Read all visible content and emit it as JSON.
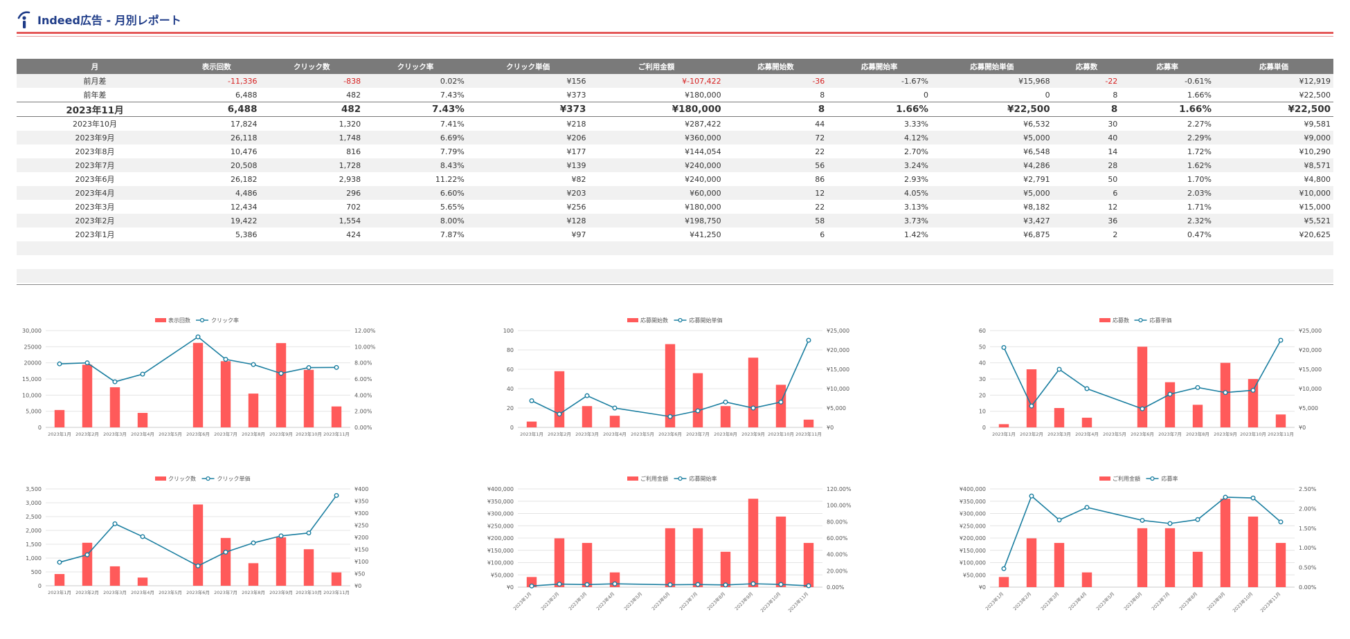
{
  "header": {
    "title": "Indeed広告 - 月別レポート"
  },
  "colors": {
    "bar": "#ff5a5a",
    "line": "#1a7ea0",
    "header_bg": "#7a7a7a",
    "negative": "#d62020",
    "title": "#1f3c88",
    "rule": "#e45858"
  },
  "table": {
    "columns": [
      "月",
      "表示回数",
      "クリック数",
      "クリック率",
      "クリック単価",
      "ご利用金額",
      "応募開始数",
      "応募開始率",
      "応募開始単価",
      "応募数",
      "応募率",
      "応募単価"
    ],
    "rows": [
      {
        "cells": [
          "前月差",
          "-11,336",
          "-838",
          "0.02%",
          "¥156",
          "¥-107,422",
          "-36",
          "-1.67%",
          "¥15,968",
          "-22",
          "-0.61%",
          "¥12,919"
        ],
        "neg": [
          1,
          2,
          5,
          6,
          9
        ],
        "style": "shade"
      },
      {
        "cells": [
          "前年差",
          "6,488",
          "482",
          "7.43%",
          "¥373",
          "¥180,000",
          "8",
          "0",
          "0",
          "8",
          "1.66%",
          "¥22,500"
        ],
        "neg": [],
        "style": ""
      },
      {
        "cells": [
          "2023年11月",
          "6,488",
          "482",
          "7.43%",
          "¥373",
          "¥180,000",
          "8",
          "1.66%",
          "¥22,500",
          "8",
          "1.66%",
          "¥22,500"
        ],
        "neg": [],
        "style": "bold"
      },
      {
        "cells": [
          "2023年10月",
          "17,824",
          "1,320",
          "7.41%",
          "¥218",
          "¥287,422",
          "44",
          "3.33%",
          "¥6,532",
          "30",
          "2.27%",
          "¥9,581"
        ],
        "neg": [],
        "style": ""
      },
      {
        "cells": [
          "2023年9月",
          "26,118",
          "1,748",
          "6.69%",
          "¥206",
          "¥360,000",
          "72",
          "4.12%",
          "¥5,000",
          "40",
          "2.29%",
          "¥9,000"
        ],
        "neg": [],
        "style": "shade"
      },
      {
        "cells": [
          "2023年8月",
          "10,476",
          "816",
          "7.79%",
          "¥177",
          "¥144,054",
          "22",
          "2.70%",
          "¥6,548",
          "14",
          "1.72%",
          "¥10,290"
        ],
        "neg": [],
        "style": ""
      },
      {
        "cells": [
          "2023年7月",
          "20,508",
          "1,728",
          "8.43%",
          "¥139",
          "¥240,000",
          "56",
          "3.24%",
          "¥4,286",
          "28",
          "1.62%",
          "¥8,571"
        ],
        "neg": [],
        "style": "shade"
      },
      {
        "cells": [
          "2023年6月",
          "26,182",
          "2,938",
          "11.22%",
          "¥82",
          "¥240,000",
          "86",
          "2.93%",
          "¥2,791",
          "50",
          "1.70%",
          "¥4,800"
        ],
        "neg": [],
        "style": ""
      },
      {
        "cells": [
          "2023年4月",
          "4,486",
          "296",
          "6.60%",
          "¥203",
          "¥60,000",
          "12",
          "4.05%",
          "¥5,000",
          "6",
          "2.03%",
          "¥10,000"
        ],
        "neg": [],
        "style": "shade"
      },
      {
        "cells": [
          "2023年3月",
          "12,434",
          "702",
          "5.65%",
          "¥256",
          "¥180,000",
          "22",
          "3.13%",
          "¥8,182",
          "12",
          "1.71%",
          "¥15,000"
        ],
        "neg": [],
        "style": ""
      },
      {
        "cells": [
          "2023年2月",
          "19,422",
          "1,554",
          "8.00%",
          "¥128",
          "¥198,750",
          "58",
          "3.73%",
          "¥3,427",
          "36",
          "2.32%",
          "¥5,521"
        ],
        "neg": [],
        "style": "shade"
      },
      {
        "cells": [
          "2023年1月",
          "5,386",
          "424",
          "7.87%",
          "¥97",
          "¥41,250",
          "6",
          "1.42%",
          "¥6,875",
          "2",
          "0.47%",
          "¥20,625"
        ],
        "neg": [],
        "style": ""
      },
      {
        "cells": [
          "",
          "",
          "",
          "",
          "",
          "",
          "",
          "",
          "",
          "",
          "",
          ""
        ],
        "neg": [],
        "style": "shade"
      },
      {
        "cells": [
          "",
          "",
          "",
          "",
          "",
          "",
          "",
          "",
          "",
          "",
          "",
          ""
        ],
        "neg": [],
        "style": ""
      },
      {
        "cells": [
          "",
          "",
          "",
          "",
          "",
          "",
          "",
          "",
          "",
          "",
          "",
          ""
        ],
        "neg": [],
        "style": "shade"
      }
    ]
  },
  "chart_data": [
    {
      "type": "bar",
      "categories": [
        "2023年1月",
        "2023年2月",
        "2023年3月",
        "2023年4月",
        "2023年5月",
        "2023年6月",
        "2023年7月",
        "2023年8月",
        "2023年9月",
        "2023年10月",
        "2023年11月"
      ],
      "series": [
        {
          "name": "表示回数",
          "type": "bar",
          "axis": "left",
          "values": [
            5386,
            19422,
            12434,
            4486,
            null,
            26182,
            20508,
            10476,
            26118,
            17824,
            6488
          ]
        },
        {
          "name": "クリック率",
          "type": "line",
          "axis": "right",
          "values": [
            7.87,
            8.0,
            5.65,
            6.6,
            null,
            11.22,
            8.43,
            7.79,
            6.69,
            7.41,
            7.43
          ]
        }
      ],
      "left_ticks": [
        "0",
        "5,000",
        "10,000",
        "15,000",
        "20000",
        "25000",
        "30,000"
      ],
      "ylim": [
        0,
        30000
      ],
      "right_ticks": [
        "0.00%",
        "2.00%",
        "4.00%",
        "6.00%",
        "8.00%",
        "10.00%",
        "12.00%"
      ],
      "y2lim": [
        0,
        12
      ],
      "legend": "top",
      "rotate": false
    },
    {
      "type": "bar",
      "categories": [
        "2023年1月",
        "2023年2月",
        "2023年3月",
        "2023年4月",
        "2023年5月",
        "2023年6月",
        "2023年7月",
        "2023年8月",
        "2023年9月",
        "2023年10月",
        "2023年11月"
      ],
      "series": [
        {
          "name": "応募開始数",
          "type": "bar",
          "axis": "left",
          "values": [
            6,
            58,
            22,
            12,
            null,
            86,
            56,
            22,
            72,
            44,
            8
          ]
        },
        {
          "name": "応募開始単価",
          "type": "line",
          "axis": "right",
          "values": [
            6875,
            3427,
            8182,
            5000,
            null,
            2791,
            4286,
            6548,
            5000,
            6532,
            22500
          ]
        }
      ],
      "left_ticks": [
        "0",
        "20",
        "40",
        "60",
        "80",
        "100"
      ],
      "ylim": [
        0,
        100
      ],
      "right_ticks": [
        "¥0",
        "¥5,000",
        "¥10,000",
        "¥15,000",
        "¥20,000",
        "¥25,000"
      ],
      "y2lim": [
        0,
        25000
      ],
      "legend": "top",
      "rotate": false
    },
    {
      "type": "bar",
      "categories": [
        "2023年1月",
        "2023年2月",
        "2023年3月",
        "2023年4月",
        "2023年5月",
        "2023年6月",
        "2023年7月",
        "2023年8月",
        "2023年9月",
        "2023年10月",
        "2023年11月"
      ],
      "series": [
        {
          "name": "応募数",
          "type": "bar",
          "axis": "left",
          "values": [
            2,
            36,
            12,
            6,
            null,
            50,
            28,
            14,
            40,
            30,
            8
          ]
        },
        {
          "name": "応募単価",
          "type": "line",
          "axis": "right",
          "values": [
            20625,
            5521,
            15000,
            10000,
            null,
            4800,
            8571,
            10290,
            9000,
            9581,
            22500
          ]
        }
      ],
      "left_ticks": [
        "0",
        "10",
        "20",
        "30",
        "40",
        "50",
        "60"
      ],
      "ylim": [
        0,
        60
      ],
      "right_ticks": [
        "¥0",
        "¥5,000",
        "¥10,000",
        "¥15,000",
        "¥20,000",
        "¥25,000"
      ],
      "y2lim": [
        0,
        25000
      ],
      "legend": "top",
      "rotate": false
    },
    {
      "type": "bar",
      "categories": [
        "2023年1月",
        "2023年2月",
        "2023年3月",
        "2023年4月",
        "2023年5月",
        "2023年6月",
        "2023年7月",
        "2023年8月",
        "2023年9月",
        "2023年10月",
        "2023年11月"
      ],
      "series": [
        {
          "name": "クリック数",
          "type": "bar",
          "axis": "left",
          "values": [
            424,
            1554,
            702,
            296,
            null,
            2938,
            1728,
            816,
            1748,
            1320,
            482
          ]
        },
        {
          "name": "クリック単価",
          "type": "line",
          "axis": "right",
          "values": [
            97,
            128,
            256,
            203,
            null,
            82,
            139,
            177,
            206,
            218,
            373
          ]
        }
      ],
      "left_ticks": [
        "0",
        "500",
        "1,000",
        "1,500",
        "2,000",
        "2,500",
        "3,000",
        "3,500"
      ],
      "ylim": [
        0,
        3500
      ],
      "right_ticks": [
        "¥0",
        "¥50",
        "¥100",
        "¥150",
        "¥200",
        "¥250",
        "¥300",
        "¥350",
        "¥400"
      ],
      "y2lim": [
        0,
        400
      ],
      "legend": "top",
      "rotate": false
    },
    {
      "type": "bar",
      "categories": [
        "2023年1月",
        "2023年2月",
        "2023年3月",
        "2023年4月",
        "2023年5月",
        "2023年6月",
        "2023年7月",
        "2023年8月",
        "2023年9月",
        "2023年10月",
        "2023年11月"
      ],
      "series": [
        {
          "name": "ご利用金額",
          "type": "bar",
          "axis": "left",
          "values": [
            41250,
            198750,
            180000,
            60000,
            null,
            240000,
            240000,
            144054,
            360000,
            287422,
            180000
          ]
        },
        {
          "name": "応募開始率",
          "type": "line",
          "axis": "right",
          "values": [
            1.42,
            3.73,
            3.13,
            4.05,
            null,
            2.93,
            3.24,
            2.7,
            4.12,
            3.33,
            1.66
          ]
        }
      ],
      "left_ticks": [
        "¥0",
        "¥50,000",
        "¥100,000",
        "¥150,000",
        "¥200,000",
        "¥250,000",
        "¥300,000",
        "¥350,000",
        "¥400,000"
      ],
      "ylim": [
        0,
        400000
      ],
      "right_ticks": [
        "0.00%",
        "20.00%",
        "40.00%",
        "60.00%",
        "80.00%",
        "100.00%",
        "120.00%"
      ],
      "y2lim": [
        0,
        120
      ],
      "legend": "top",
      "rotate": true
    },
    {
      "type": "bar",
      "categories": [
        "2023年1月",
        "2023年2月",
        "2023年3月",
        "2023年4月",
        "2023年5月",
        "2023年6月",
        "2023年7月",
        "2023年8月",
        "2023年9月",
        "2023年10月",
        "2023年11月"
      ],
      "series": [
        {
          "name": "ご利用金額",
          "type": "bar",
          "axis": "left",
          "values": [
            41250,
            198750,
            180000,
            60000,
            null,
            240000,
            240000,
            144054,
            360000,
            287422,
            180000
          ]
        },
        {
          "name": "応募率",
          "type": "line",
          "axis": "right",
          "values": [
            0.47,
            2.32,
            1.71,
            2.03,
            null,
            1.7,
            1.62,
            1.72,
            2.29,
            2.27,
            1.66
          ]
        }
      ],
      "left_ticks": [
        "¥0",
        "¥50,000",
        "¥100,000",
        "¥150,000",
        "¥200,000",
        "¥250,000",
        "¥300,000",
        "¥350,000",
        "¥400,000"
      ],
      "ylim": [
        0,
        400000
      ],
      "right_ticks": [
        "0.00%",
        "0.50%",
        "1.00%",
        "1.50%",
        "2.00%",
        "2.50%"
      ],
      "y2lim": [
        0,
        2.5
      ],
      "legend": "top",
      "rotate": true
    }
  ]
}
